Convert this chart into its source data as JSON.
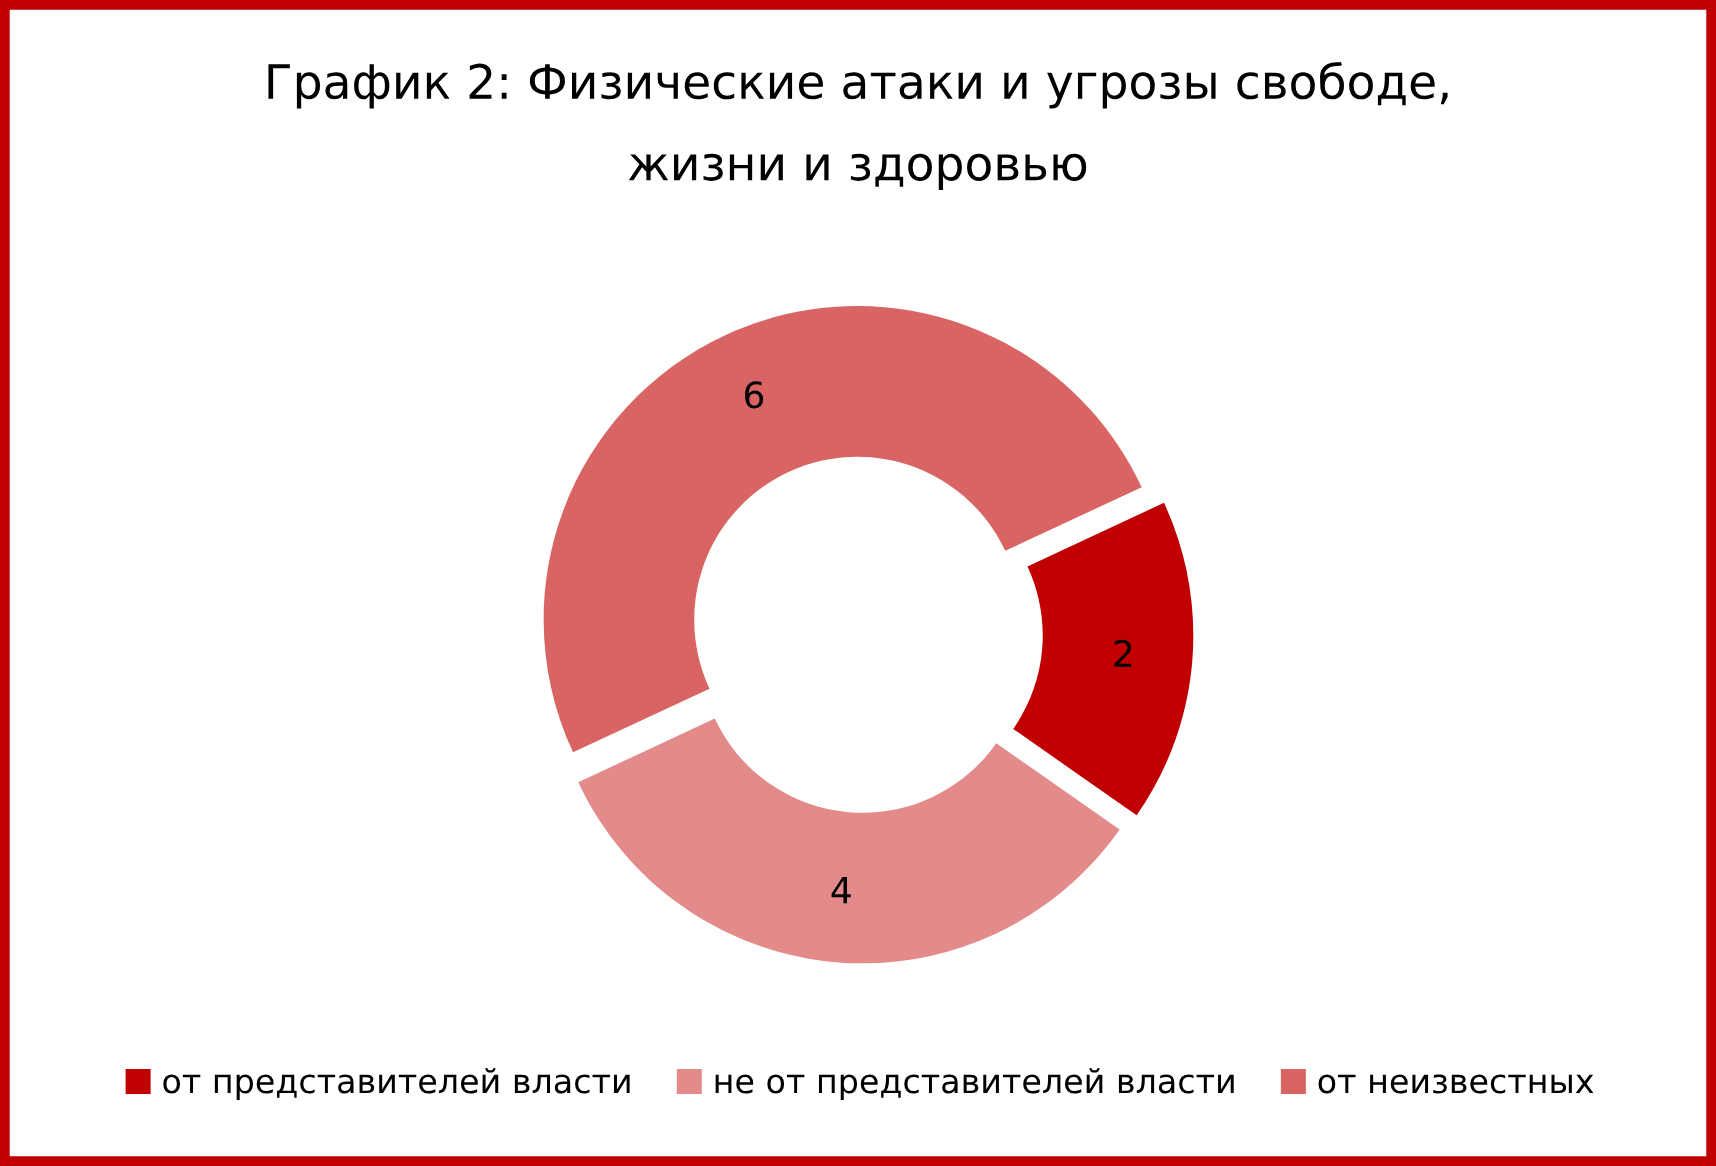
{
  "chart_data": {
    "type": "donut",
    "title": "График 2: Физические атаки и угрозы свободе,\nжизни и здоровью",
    "categories": [
      "от представителей власти",
      "не от представителей власти",
      "от неизвестных"
    ],
    "values": [
      2,
      4,
      6
    ],
    "colors": [
      "#c00000",
      "#e38a8a",
      "#d96464"
    ],
    "data_labels": true,
    "legend": "bottom"
  }
}
